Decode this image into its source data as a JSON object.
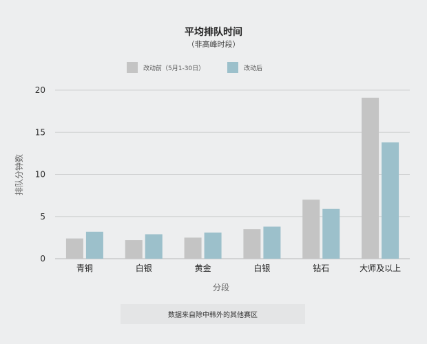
{
  "chart_data": {
    "type": "bar",
    "title": "平均排队时间",
    "subtitle": "（非高峰时段）",
    "xlabel": "分段",
    "ylabel": "排队分钟数",
    "categories": [
      "青铜",
      "白银",
      "黄金",
      "白银",
      "钻石",
      "大师及以上"
    ],
    "series": [
      {
        "name": "改动前（5月1-30日）",
        "color": "#c4c4c4",
        "values": [
          2.4,
          2.2,
          2.5,
          3.5,
          7.0,
          19.1
        ]
      },
      {
        "name": "改动后",
        "color": "#9cc0cb",
        "values": [
          3.2,
          2.9,
          3.1,
          3.8,
          5.9,
          13.8
        ]
      }
    ],
    "ylim": [
      0,
      20
    ],
    "yticks": [
      0,
      5,
      10,
      15,
      20
    ],
    "grid": true,
    "legend_position": "top"
  },
  "footnote": "数据来自除中韩外的其他赛区"
}
